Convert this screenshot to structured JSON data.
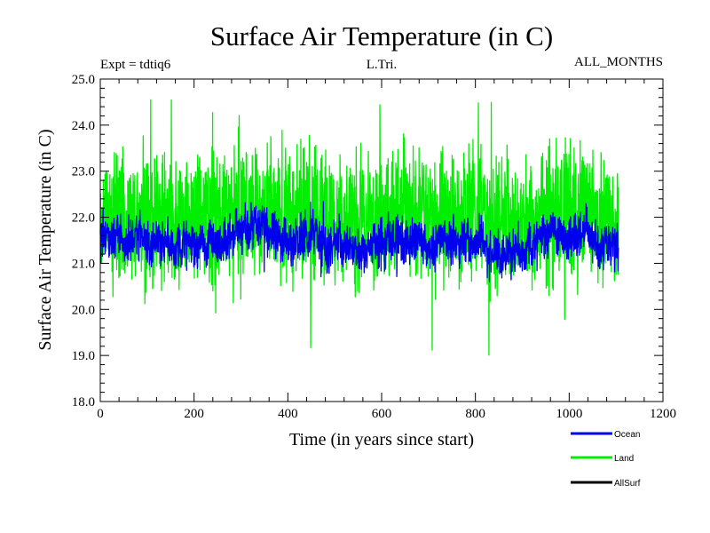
{
  "chart_data": {
    "type": "line",
    "title": "Surface Air Temperature (in C)",
    "subtitle_left": "Expt = tdtiq6",
    "subtitle_center": "L.Tri.",
    "subtitle_right": "ALL_MONTHS",
    "xlabel": "Time (in years since start)",
    "ylabel": "Surface Air Temperature (in C)",
    "xlim": [
      0,
      1200
    ],
    "ylim": [
      18.0,
      25.0
    ],
    "xticks": [
      0,
      200,
      400,
      600,
      800,
      1000,
      1200
    ],
    "xtick_labels": [
      "0",
      "200",
      "400",
      "600",
      "800",
      "1000",
      "1200"
    ],
    "yticks": [
      18.0,
      19.0,
      20.0,
      21.0,
      22.0,
      23.0,
      24.0,
      25.0
    ],
    "ytick_labels": [
      "18.0",
      "19.0",
      "20.0",
      "21.0",
      "22.0",
      "23.0",
      "24.0",
      "25.0"
    ],
    "grid": false,
    "legend_position": "bottom-right",
    "series": [
      {
        "name": "Land",
        "color": "#00ee00",
        "x_start": 0,
        "x_end": 1105,
        "mean": 22.0,
        "typical_min": 20.3,
        "typical_max": 23.8,
        "extreme_min": 18.9,
        "extreme_max": 24.55
      },
      {
        "name": "Ocean",
        "color": "#0000ee",
        "x_start": 0,
        "x_end": 1105,
        "mean": 21.5,
        "typical_min": 20.9,
        "typical_max": 22.1,
        "extreme_min": 20.6,
        "extreme_max": 22.4
      },
      {
        "name": "AllSurf",
        "color": "#000000",
        "x_start": 0,
        "x_end": 1105,
        "mean": 21.6
      }
    ],
    "legend": [
      {
        "name": "Ocean",
        "color": "#0000ee"
      },
      {
        "name": "Land",
        "color": "#00ee00"
      },
      {
        "name": "AllSurf",
        "color": "#000000"
      }
    ]
  }
}
